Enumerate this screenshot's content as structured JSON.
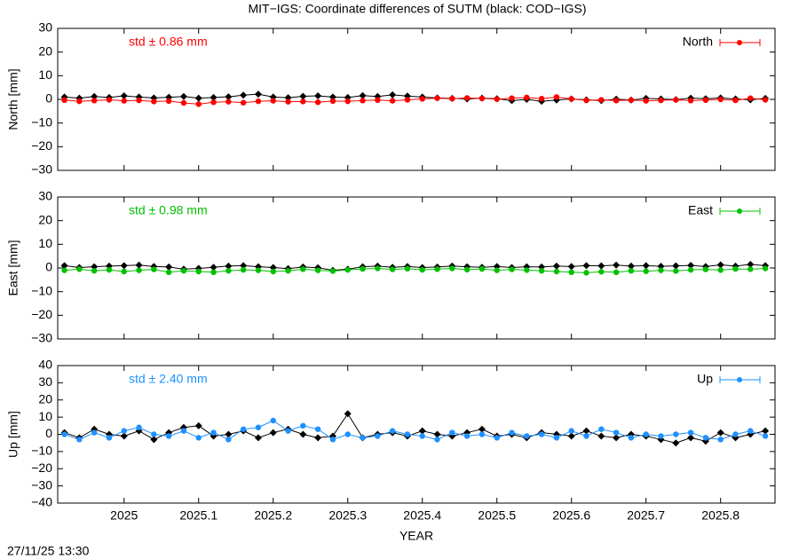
{
  "footer": "27/11/25 13:30",
  "chart_data": [
    {
      "type": "line",
      "title": "MIT−IGS: Coordinate differences of SUTM (black: COD−IGS)",
      "ylabel": "North [mm]",
      "annotation": "std ± 0.86 mm",
      "legend": "upper right",
      "xlim": [
        2024.911,
        2025.873
      ],
      "xticks": [
        2025,
        2025.1,
        2025.2,
        2025.3,
        2025.4,
        2025.5,
        2025.6,
        2025.7,
        2025.8
      ],
      "ylim": [
        -30,
        30
      ],
      "yticks": [
        {
          "value": -30,
          "label": "−30"
        },
        {
          "value": -20,
          "label": "−20"
        },
        {
          "value": -10,
          "label": "−10"
        },
        0,
        10,
        20,
        30
      ],
      "x": [
        2024.92,
        2024.94,
        2024.96,
        2024.98,
        2025,
        2025.02,
        2025.04,
        2025.06,
        2025.08,
        2025.1,
        2025.12,
        2025.14,
        2025.16,
        2025.18,
        2025.2,
        2025.22,
        2025.24,
        2025.26,
        2025.28,
        2025.3,
        2025.32,
        2025.34,
        2025.36,
        2025.38,
        2025.4,
        2025.42,
        2025.44,
        2025.46,
        2025.48,
        2025.5,
        2025.52,
        2025.54,
        2025.56,
        2025.58,
        2025.6,
        2025.62,
        2025.64,
        2025.66,
        2025.68,
        2025.7,
        2025.72,
        2025.74,
        2025.76,
        2025.78,
        2025.8,
        2025.82,
        2025.84,
        2025.86
      ],
      "series": [
        {
          "color": "#000000",
          "values": [
            1,
            0.5,
            1.2,
            0.8,
            1.5,
            1,
            0.6,
            0.9,
            1.2,
            0.5,
            0.8,
            1.1,
            1.8,
            2.2,
            1,
            0.7,
            1.3,
            1.5,
            1,
            0.8,
            1.6,
            1.2,
            1.9,
            1.4,
            1,
            0.6,
            0.4,
            0.2,
            0.5,
            0.3,
            -0.5,
            0,
            -0.8,
            -0.3,
            0.2,
            -0.2,
            -0.5,
            0.1,
            -0.3,
            0.4,
            0.2,
            -0.1,
            0.5,
            0.3,
            0.6,
            0.2,
            -0.2,
            0.4
          ]
        },
        {
          "name": "North",
          "color": "#ff0000",
          "values": [
            -0.3,
            -0.8,
            -0.5,
            -0.2,
            -0.6,
            -0.4,
            -0.9,
            -0.7,
            -1.5,
            -2,
            -1.2,
            -1,
            -1.4,
            -0.8,
            -0.6,
            -1,
            -0.9,
            -1.2,
            -0.7,
            -0.8,
            -0.5,
            -0.3,
            -0.6,
            -0.2,
            0.2,
            0.5,
            0.3,
            0.6,
            0.4,
            0.1,
            0.5,
            0.8,
            0.3,
            1,
            0.2,
            -0.4,
            -0.2,
            -0.5,
            -0.3,
            -0.6,
            -0.4,
            -0.2,
            -0.5,
            -0.3,
            0,
            -0.4,
            0.5,
            -0.2
          ]
        }
      ]
    },
    {
      "type": "line",
      "ylabel": "East [mm]",
      "annotation": "std ± 0.98 mm",
      "legend": "upper right",
      "xlim": [
        2024.911,
        2025.873
      ],
      "xticks": [
        2025,
        2025.1,
        2025.2,
        2025.3,
        2025.4,
        2025.5,
        2025.6,
        2025.7,
        2025.8
      ],
      "ylim": [
        -30,
        30
      ],
      "yticks": [
        {
          "value": -30,
          "label": "−30"
        },
        {
          "value": -20,
          "label": "−20"
        },
        {
          "value": -10,
          "label": "−10"
        },
        0,
        10,
        20,
        30
      ],
      "x": [
        2024.92,
        2024.94,
        2024.96,
        2024.98,
        2025,
        2025.02,
        2025.04,
        2025.06,
        2025.08,
        2025.1,
        2025.12,
        2025.14,
        2025.16,
        2025.18,
        2025.2,
        2025.22,
        2025.24,
        2025.26,
        2025.28,
        2025.3,
        2025.32,
        2025.34,
        2025.36,
        2025.38,
        2025.4,
        2025.42,
        2025.44,
        2025.46,
        2025.48,
        2025.5,
        2025.52,
        2025.54,
        2025.56,
        2025.58,
        2025.6,
        2025.62,
        2025.64,
        2025.66,
        2025.68,
        2025.7,
        2025.72,
        2025.74,
        2025.76,
        2025.78,
        2025.8,
        2025.82,
        2025.84,
        2025.86
      ],
      "series": [
        {
          "color": "#000000",
          "values": [
            1,
            0.2,
            0.5,
            0.8,
            1,
            1.2,
            0.6,
            0.4,
            -0.5,
            -0.2,
            0.3,
            0.8,
            1,
            0.5,
            0.2,
            -0.3,
            0.4,
            0.1,
            -1,
            -0.5,
            0.5,
            0.8,
            0.3,
            0.6,
            0.2,
            0.4,
            0.8,
            0.5,
            0.3,
            0.6,
            0.2,
            0.5,
            0.4,
            0.8,
            0.6,
            1,
            0.9,
            1.2,
            0.8,
            1,
            0.7,
            0.9,
            1.1,
            0.6,
            1.3,
            0.8,
            1.5,
            1
          ]
        },
        {
          "name": "East",
          "color": "#00c000",
          "values": [
            -1,
            -0.5,
            -1.2,
            -0.8,
            -1.5,
            -1,
            -0.6,
            -1.8,
            -1.2,
            -1.5,
            -1.8,
            -1.2,
            -0.8,
            -1,
            -1.5,
            -1.2,
            -0.5,
            -1,
            -1.3,
            -0.8,
            -0.4,
            -0.2,
            -0.6,
            -0.3,
            -0.8,
            -0.5,
            -0.2,
            -0.7,
            -0.4,
            -1,
            -0.6,
            -0.9,
            -1.2,
            -1.5,
            -1.8,
            -2,
            -1.6,
            -1.8,
            -1.2,
            -1.4,
            -1,
            -1.3,
            -0.8,
            -0.6,
            -0.9,
            -0.4,
            -0.5,
            -0.2
          ]
        }
      ]
    },
    {
      "type": "line",
      "ylabel": "Up [mm]",
      "xlabel": "YEAR",
      "annotation": "std ± 2.40 mm",
      "legend": "upper right",
      "xlim": [
        2024.911,
        2025.873
      ],
      "xticks": [
        2025,
        2025.1,
        2025.2,
        2025.3,
        2025.4,
        2025.5,
        2025.6,
        2025.7,
        2025.8
      ],
      "ylim": [
        -40,
        40
      ],
      "yticks": [
        {
          "value": -40,
          "label": "−40"
        },
        {
          "value": -30,
          "label": "−30"
        },
        {
          "value": -20,
          "label": "−20"
        },
        {
          "value": -10,
          "label": "−10"
        },
        0,
        10,
        20,
        30,
        40
      ],
      "x": [
        2024.92,
        2024.94,
        2024.96,
        2024.98,
        2025,
        2025.02,
        2025.04,
        2025.06,
        2025.08,
        2025.1,
        2025.12,
        2025.14,
        2025.16,
        2025.18,
        2025.2,
        2025.22,
        2025.24,
        2025.26,
        2025.28,
        2025.3,
        2025.32,
        2025.34,
        2025.36,
        2025.38,
        2025.4,
        2025.42,
        2025.44,
        2025.46,
        2025.48,
        2025.5,
        2025.52,
        2025.54,
        2025.56,
        2025.58,
        2025.6,
        2025.62,
        2025.64,
        2025.66,
        2025.68,
        2025.7,
        2025.72,
        2025.74,
        2025.76,
        2025.78,
        2025.8,
        2025.82,
        2025.84,
        2025.86
      ],
      "series": [
        {
          "color": "#000000",
          "values": [
            1,
            -2,
            3,
            0,
            -1,
            2,
            -3,
            1,
            4,
            5,
            -1,
            0,
            2,
            -2,
            1,
            3,
            0,
            -2,
            -1,
            12,
            -2,
            0,
            1,
            -1,
            2,
            0,
            -1,
            1,
            3,
            -1,
            0,
            -2,
            1,
            0,
            -1,
            2,
            -1,
            -2,
            0,
            -1,
            -3,
            -5,
            -2,
            -4,
            1,
            -2,
            0,
            2
          ]
        },
        {
          "name": "Up",
          "color": "#1e90ff",
          "values": [
            0,
            -3,
            1,
            -2,
            2,
            4,
            0,
            -1,
            2,
            -2,
            1,
            -3,
            3,
            4,
            8,
            2,
            5,
            3,
            -3,
            0,
            -2,
            -1,
            2,
            0,
            -1,
            -3,
            1,
            -1,
            0,
            -2,
            1,
            -1,
            0,
            -2,
            2,
            -1,
            3,
            1,
            -2,
            0,
            -1,
            0,
            1,
            -2,
            -3,
            0,
            2,
            -1
          ]
        }
      ]
    }
  ]
}
